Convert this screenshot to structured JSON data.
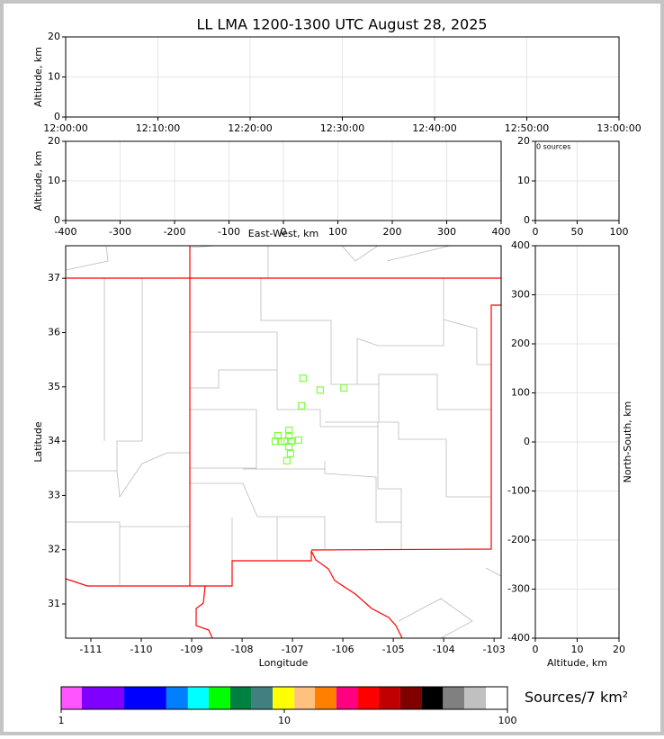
{
  "chart_data": [
    {
      "type": "line",
      "title": "LL LMA 1200-1300 UTC August 28, 2025",
      "ylabel": "Altitude, km",
      "xticks": [
        "12:00:00",
        "12:10:00",
        "12:20:00",
        "12:30:00",
        "12:40:00",
        "12:50:00",
        "13:00:00"
      ],
      "ylim": [
        0,
        20
      ],
      "yticks": [
        0,
        10,
        20
      ],
      "grid": true
    },
    {
      "type": "line",
      "xlabel": "East-West, km",
      "ylabel": "Altitude, km",
      "xlim": [
        -400,
        400
      ],
      "xticks": [
        -400,
        -300,
        -200,
        -100,
        0,
        100,
        200,
        300,
        400
      ],
      "ylim": [
        0,
        20
      ],
      "yticks": [
        0,
        10,
        20
      ],
      "grid": true
    },
    {
      "type": "histogram",
      "annotation": "0 sources",
      "xlim": [
        0,
        100
      ],
      "xticks": [
        0,
        50,
        100
      ],
      "ylim": [
        0,
        20
      ],
      "yticks": [
        0,
        10,
        20
      ],
      "grid": true
    },
    {
      "type": "scatter",
      "xlabel": "Longitude",
      "ylabel": "Latitude",
      "color": "#80ff40",
      "x": [
        -106.79,
        -106.45,
        -105.98,
        -106.82,
        -107.07,
        -107.29,
        -107.07,
        -107.34,
        -107.23,
        -107.16,
        -107.02,
        -106.88,
        -107.07,
        -107.04,
        -107.11
      ],
      "values": [
        35.16,
        34.94,
        34.98,
        34.65,
        34.2,
        34.1,
        34.1,
        34.0,
        34.0,
        34.0,
        34.0,
        34.02,
        33.9,
        33.77,
        33.64
      ],
      "xlim": [
        -111.5,
        -102.86
      ],
      "xticks": [
        -111,
        -110,
        -109,
        -108,
        -107,
        -106,
        -105,
        -104,
        -103
      ],
      "ylim": [
        30.37,
        37.6
      ],
      "yticks": [
        31,
        32,
        33,
        34,
        35,
        36,
        37
      ],
      "grid": false
    },
    {
      "type": "line",
      "xlabel": "Altitude, km",
      "ylabel": "North-South, km",
      "ylabel_side": "right",
      "xlim": [
        0,
        20
      ],
      "xticks": [
        0,
        10,
        20
      ],
      "ylim": [
        -400,
        400
      ],
      "yticks": [
        -400,
        -300,
        -200,
        -100,
        0,
        100,
        200,
        300,
        400
      ],
      "grid": true
    },
    {
      "type": "colorbar",
      "label": "Sources/7 km²",
      "log": true,
      "xlim": [
        1,
        100
      ],
      "xticks": [
        1,
        10,
        100
      ],
      "bounds": [
        1,
        1.238,
        1.915,
        2.96,
        3.7,
        4.58,
        5.72,
        7.14,
        8.87,
        11.1,
        13.7,
        17.1,
        21.4,
        26.5,
        33.1,
        41.4,
        51.4,
        64.1,
        80.1,
        100
      ],
      "colors": [
        "#ff55ff",
        "#8000ff",
        "#0000ff",
        "#0080ff",
        "#00ffff",
        "#00ff00",
        "#008040",
        "#408080",
        "#ffff00",
        "#ffc080",
        "#ff8000",
        "#ff0080",
        "#ff0000",
        "#c00000",
        "#800000",
        "#000000",
        "#808080",
        "#c0c0c0",
        "#ffffff"
      ]
    }
  ]
}
